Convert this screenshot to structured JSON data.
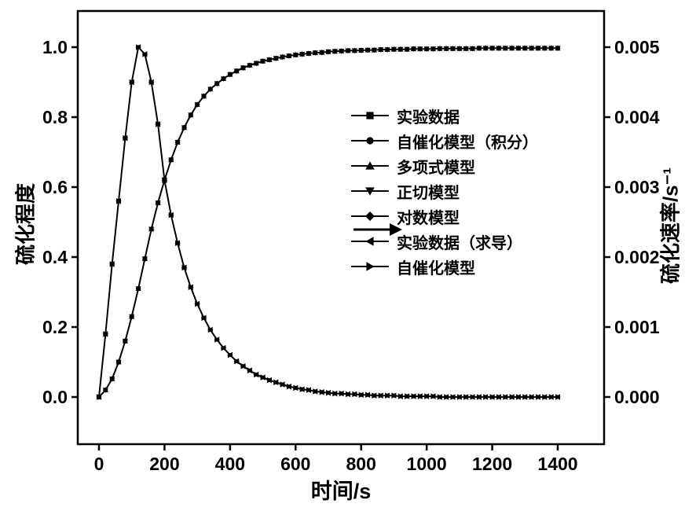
{
  "background": "#ffffff",
  "chart_data": {
    "type": "line",
    "title": "",
    "xlabel": "时间/s",
    "ylabel_left": "硫化程度",
    "ylabel_right": "硫化速率/s⁻¹",
    "color": "#000000",
    "grid": false,
    "legend_position": "inside-right-upper",
    "xlim": [
      -60,
      1545
    ],
    "ylim_left": [
      -0.135,
      1.103
    ],
    "ylim_right": [
      -0.000675,
      0.005515
    ],
    "xticks": [
      0,
      200,
      400,
      600,
      800,
      1000,
      1200,
      1400
    ],
    "yticks_left": [
      "0.0",
      "0.2",
      "0.4",
      "0.6",
      "0.8",
      "1.0"
    ],
    "yticks_right": [
      "0.000",
      "0.001",
      "0.002",
      "0.003",
      "0.004",
      "0.005"
    ],
    "arrow_annotation": {
      "direction": "right",
      "meaning": "rate curves read the right axis"
    },
    "legend": [
      {
        "label": "实验数据",
        "marker": "square",
        "axis": "left",
        "dataset": "degree"
      },
      {
        "label": "自催化模型（积分）",
        "marker": "circle",
        "axis": "left",
        "dataset": "degree"
      },
      {
        "label": "多项式模型",
        "marker": "triangle-up",
        "axis": "left",
        "dataset": "degree"
      },
      {
        "label": "正切模型",
        "marker": "triangle-down",
        "axis": "left",
        "dataset": "degree"
      },
      {
        "label": "对数模型",
        "marker": "diamond",
        "axis": "left",
        "dataset": "degree"
      },
      {
        "label": "实验数据（求导）",
        "marker": "triangle-left",
        "axis": "right",
        "dataset": "rate"
      },
      {
        "label": "自催化模型",
        "marker": "triangle-right",
        "axis": "right",
        "dataset": "rate"
      }
    ],
    "degree": {
      "axis": "left",
      "x": [
        0,
        20,
        40,
        60,
        80,
        100,
        120,
        140,
        160,
        180,
        200,
        220,
        240,
        260,
        280,
        300,
        320,
        340,
        360,
        380,
        400,
        420,
        440,
        460,
        480,
        500,
        520,
        540,
        560,
        580,
        600,
        620,
        640,
        660,
        680,
        700,
        720,
        740,
        760,
        780,
        800,
        820,
        840,
        860,
        880,
        900,
        920,
        940,
        960,
        980,
        1000,
        1020,
        1040,
        1060,
        1080,
        1100,
        1120,
        1140,
        1160,
        1180,
        1200,
        1220,
        1240,
        1260,
        1280,
        1300,
        1320,
        1340,
        1360,
        1380,
        1400
      ],
      "y": [
        0.0,
        0.02,
        0.052,
        0.1,
        0.16,
        0.23,
        0.31,
        0.395,
        0.48,
        0.555,
        0.62,
        0.678,
        0.728,
        0.77,
        0.806,
        0.836,
        0.86,
        0.88,
        0.896,
        0.91,
        0.922,
        0.932,
        0.941,
        0.948,
        0.954,
        0.96,
        0.964,
        0.968,
        0.972,
        0.975,
        0.978,
        0.98,
        0.982,
        0.984,
        0.985,
        0.987,
        0.988,
        0.989,
        0.99,
        0.99,
        0.991,
        0.992,
        0.992,
        0.993,
        0.993,
        0.994,
        0.994,
        0.994,
        0.995,
        0.995,
        0.995,
        0.995,
        0.996,
        0.996,
        0.996,
        0.996,
        0.996,
        0.996,
        0.997,
        0.997,
        0.997,
        0.997,
        0.997,
        0.997,
        0.997,
        0.997,
        0.997,
        0.997,
        0.997,
        0.997,
        0.997
      ]
    },
    "rate": {
      "axis": "right",
      "x": [
        0,
        20,
        40,
        60,
        80,
        100,
        120,
        140,
        160,
        180,
        200,
        220,
        240,
        260,
        280,
        300,
        320,
        340,
        360,
        380,
        400,
        420,
        440,
        460,
        480,
        500,
        520,
        540,
        560,
        580,
        600,
        620,
        640,
        660,
        680,
        700,
        720,
        740,
        760,
        780,
        800,
        820,
        840,
        860,
        880,
        900,
        920,
        940,
        960,
        980,
        1000,
        1020,
        1040,
        1060,
        1080,
        1100,
        1120,
        1140,
        1160,
        1180,
        1200,
        1220,
        1240,
        1260,
        1280,
        1300,
        1320,
        1340,
        1360,
        1380,
        1400
      ],
      "y": [
        0.0,
        0.0009,
        0.0019,
        0.0028,
        0.0037,
        0.0045,
        0.005,
        0.0049,
        0.0045,
        0.0039,
        0.0031,
        0.0026,
        0.0022,
        0.00185,
        0.00157,
        0.00133,
        0.00113,
        0.00096,
        0.00082,
        0.0007,
        0.0006,
        0.00051,
        0.00044,
        0.00038,
        0.00032,
        0.00028,
        0.00024,
        0.00021,
        0.00018,
        0.00015,
        0.00013,
        0.00011,
        0.0001,
        8e-05,
        7e-05,
        6e-05,
        5e-05,
        5e-05,
        4e-05,
        4e-05,
        3e-05,
        3e-05,
        2e-05,
        2e-05,
        2e-05,
        2e-05,
        1e-05,
        1e-05,
        1e-05,
        1e-05,
        1e-05,
        1e-05,
        0.0,
        0.0,
        0.0,
        0.0,
        0.0,
        0.0,
        0.0,
        0.0,
        0.0,
        0.0,
        0.0,
        0.0,
        0.0,
        0.0,
        0.0,
        0.0,
        0.0,
        0.0,
        0.0
      ]
    }
  }
}
